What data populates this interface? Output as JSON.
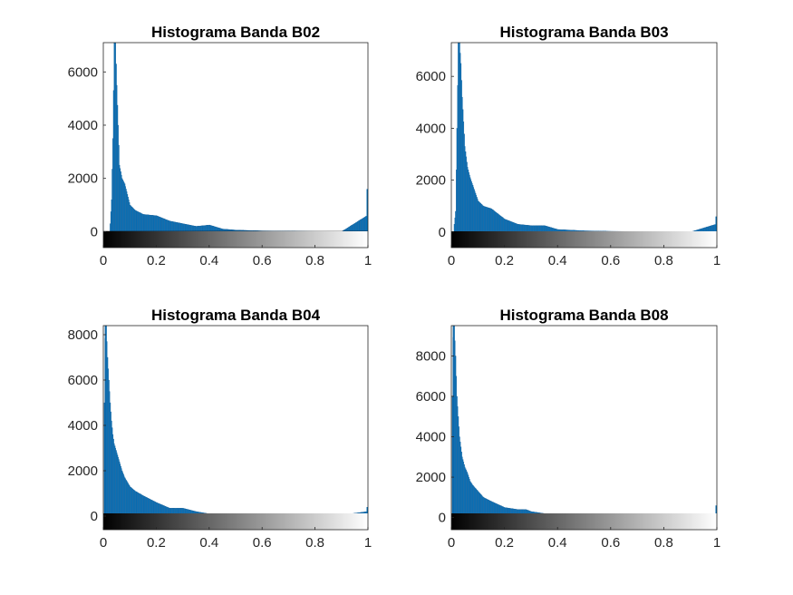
{
  "chart_data": [
    {
      "type": "bar",
      "title": "Histograma Banda B02",
      "color": "#0072BD",
      "xlim": [
        0,
        1
      ],
      "ylim": [
        -600,
        7100
      ],
      "xticks": [
        0,
        0.2,
        0.4,
        0.6,
        0.8,
        1
      ],
      "xtick_labels": [
        "0",
        "0.2",
        "0.4",
        "0.6",
        "0.8",
        "1"
      ],
      "yticks": [
        0,
        2000,
        4000,
        6000
      ],
      "ytick_labels": [
        "0",
        "2000",
        "4000",
        "6000"
      ],
      "colorbar": "grayscale 0-1",
      "x": [
        0.025,
        0.03,
        0.035,
        0.04,
        0.045,
        0.05,
        0.06,
        0.07,
        0.08,
        0.1,
        0.12,
        0.15,
        0.2,
        0.25,
        0.3,
        0.35,
        0.4,
        0.45,
        0.5,
        0.6,
        0.7,
        0.8,
        0.9,
        0.995,
        1.0
      ],
      "values": [
        300,
        1200,
        3500,
        7100,
        7100,
        5500,
        2500,
        2000,
        1800,
        1000,
        800,
        650,
        600,
        400,
        300,
        200,
        250,
        100,
        60,
        30,
        20,
        10,
        5,
        600,
        1600
      ]
    },
    {
      "type": "bar",
      "title": "Histograma Banda B03",
      "color": "#0072BD",
      "xlim": [
        0,
        1
      ],
      "ylim": [
        -600,
        7300
      ],
      "xticks": [
        0,
        0.2,
        0.4,
        0.6,
        0.8,
        1
      ],
      "xtick_labels": [
        "0",
        "0.2",
        "0.4",
        "0.6",
        "0.8",
        "1"
      ],
      "yticks": [
        0,
        2000,
        4000,
        6000
      ],
      "ytick_labels": [
        "0",
        "2000",
        "4000",
        "6000"
      ],
      "colorbar": "grayscale 0-1",
      "x": [
        0.01,
        0.015,
        0.02,
        0.025,
        0.03,
        0.035,
        0.04,
        0.05,
        0.06,
        0.07,
        0.08,
        0.1,
        0.12,
        0.15,
        0.2,
        0.25,
        0.3,
        0.35,
        0.4,
        0.5,
        0.6,
        0.7,
        0.8,
        0.9,
        0.995,
        1.0
      ],
      "values": [
        300,
        800,
        4000,
        7300,
        7300,
        6500,
        5200,
        3300,
        2500,
        2100,
        1800,
        1200,
        1000,
        900,
        500,
        300,
        250,
        250,
        100,
        50,
        30,
        20,
        10,
        5,
        300,
        600
      ]
    },
    {
      "type": "bar",
      "title": "Histograma Banda B04",
      "color": "#0072BD",
      "xlim": [
        0,
        1
      ],
      "ylim": [
        -600,
        8400
      ],
      "xticks": [
        0,
        0.2,
        0.4,
        0.6,
        0.8,
        1
      ],
      "xtick_labels": [
        "0",
        "0.2",
        "0.4",
        "0.6",
        "0.8",
        "1"
      ],
      "yticks": [
        0,
        2000,
        4000,
        6000,
        8000
      ],
      "ytick_labels": [
        "0",
        "2000",
        "4000",
        "6000",
        "8000"
      ],
      "colorbar": "grayscale 0-1",
      "x": [
        0.003,
        0.006,
        0.01,
        0.015,
        0.02,
        0.025,
        0.03,
        0.035,
        0.04,
        0.05,
        0.06,
        0.07,
        0.08,
        0.1,
        0.12,
        0.15,
        0.2,
        0.25,
        0.3,
        0.35,
        0.4,
        0.5,
        0.6,
        0.7,
        0.8,
        0.9,
        0.995,
        1.0
      ],
      "values": [
        5000,
        8400,
        8400,
        7000,
        6000,
        5000,
        4200,
        3600,
        3200,
        2800,
        2400,
        2000,
        1700,
        1300,
        1100,
        900,
        600,
        350,
        350,
        200,
        100,
        60,
        40,
        20,
        10,
        50,
        200,
        400
      ]
    },
    {
      "type": "bar",
      "title": "Histograma Banda B08",
      "color": "#0072BD",
      "xlim": [
        0,
        1
      ],
      "ylim": [
        -600,
        9500
      ],
      "xticks": [
        0,
        0.2,
        0.4,
        0.6,
        0.8,
        1
      ],
      "xtick_labels": [
        "0",
        "0.2",
        "0.4",
        "0.6",
        "0.8",
        "1"
      ],
      "yticks": [
        0,
        2000,
        4000,
        6000,
        8000
      ],
      "ytick_labels": [
        "0",
        "2000",
        "4000",
        "6000",
        "8000"
      ],
      "colorbar": "grayscale 0-1",
      "x": [
        0.003,
        0.006,
        0.01,
        0.015,
        0.02,
        0.025,
        0.03,
        0.035,
        0.04,
        0.05,
        0.06,
        0.07,
        0.08,
        0.1,
        0.12,
        0.15,
        0.2,
        0.25,
        0.28,
        0.3,
        0.35,
        0.4,
        0.5,
        0.6,
        0.7,
        0.8,
        0.9,
        0.995,
        1.0
      ],
      "values": [
        6000,
        9500,
        9500,
        8000,
        6000,
        5000,
        4000,
        3500,
        3000,
        2500,
        2200,
        1800,
        1600,
        1300,
        1000,
        800,
        500,
        400,
        400,
        300,
        200,
        100,
        60,
        40,
        20,
        10,
        50,
        200,
        600
      ]
    }
  ]
}
